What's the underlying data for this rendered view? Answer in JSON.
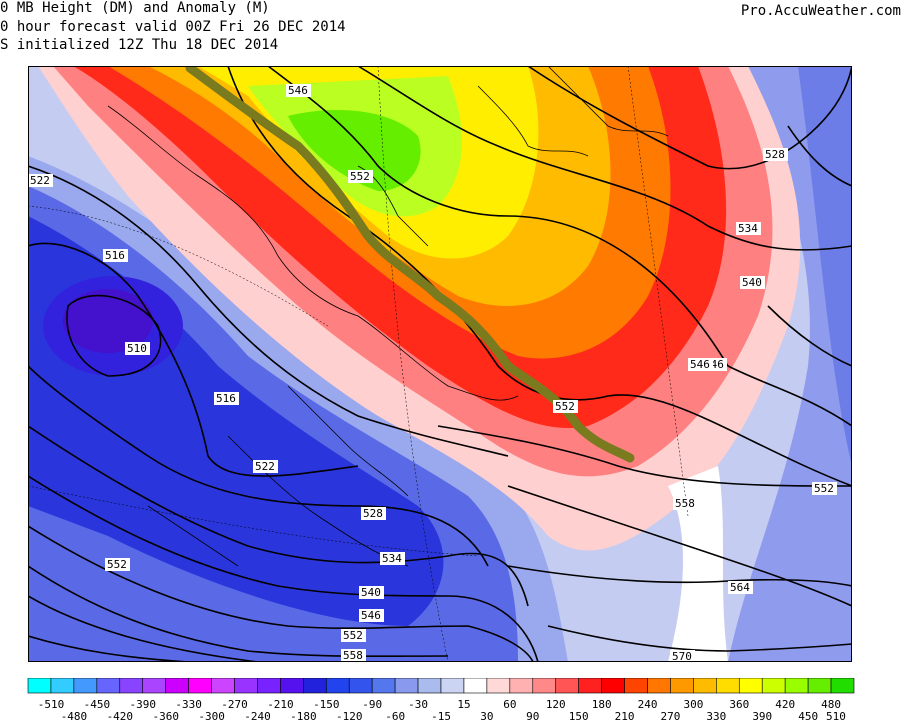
{
  "header": {
    "line1": "0 MB Height (DM) and Anomaly (M)",
    "line2": "0 hour forecast valid 00Z Fri 26 DEC 2014",
    "line3": "S initialized 12Z Thu 18 DEC 2014",
    "credit": "Pro.AccuWeather.com"
  },
  "map": {
    "contour_labels": [
      "546",
      "552",
      "522",
      "516",
      "510",
      "516",
      "522",
      "528",
      "534",
      "540",
      "546",
      "552",
      "558",
      "546",
      "528",
      "534",
      "540",
      "546",
      "552",
      "552",
      "558",
      "564",
      "570",
      "552"
    ],
    "trough_ridge_line_color": "#7a7a1e"
  },
  "legend": {
    "values": [
      "-510",
      "-480",
      "-450",
      "-420",
      "-390",
      "-360",
      "-330",
      "-300",
      "-270",
      "-240",
      "-210",
      "-180",
      "-150",
      "-120",
      "-90",
      "-60",
      "-30",
      "-15",
      "15",
      "30",
      "60",
      "90",
      "120",
      "150",
      "180",
      "210",
      "240",
      "270",
      "300",
      "330",
      "360",
      "390",
      "420",
      "450",
      "480",
      "510"
    ],
    "colors": [
      "#00ffff",
      "#33ccff",
      "#4499ff",
      "#6666ff",
      "#8844ff",
      "#aa44ff",
      "#cc00ff",
      "#ff00ff",
      "#cc44ff",
      "#9933ff",
      "#7722ff",
      "#5511ee",
      "#2222dd",
      "#2244ee",
      "#3355ee",
      "#5577ee",
      "#8899ee",
      "#aabbee",
      "#ccd4f4",
      "#ffffff",
      "#ffd8d8",
      "#ffb0b0",
      "#ff8888",
      "#ff5555",
      "#ff2020",
      "#ff0000",
      "#ff4400",
      "#ff7700",
      "#ff9900",
      "#ffbb00",
      "#ffdd00",
      "#ffff00",
      "#ccff00",
      "#99ff00",
      "#66ee00",
      "#22dd00"
    ]
  }
}
